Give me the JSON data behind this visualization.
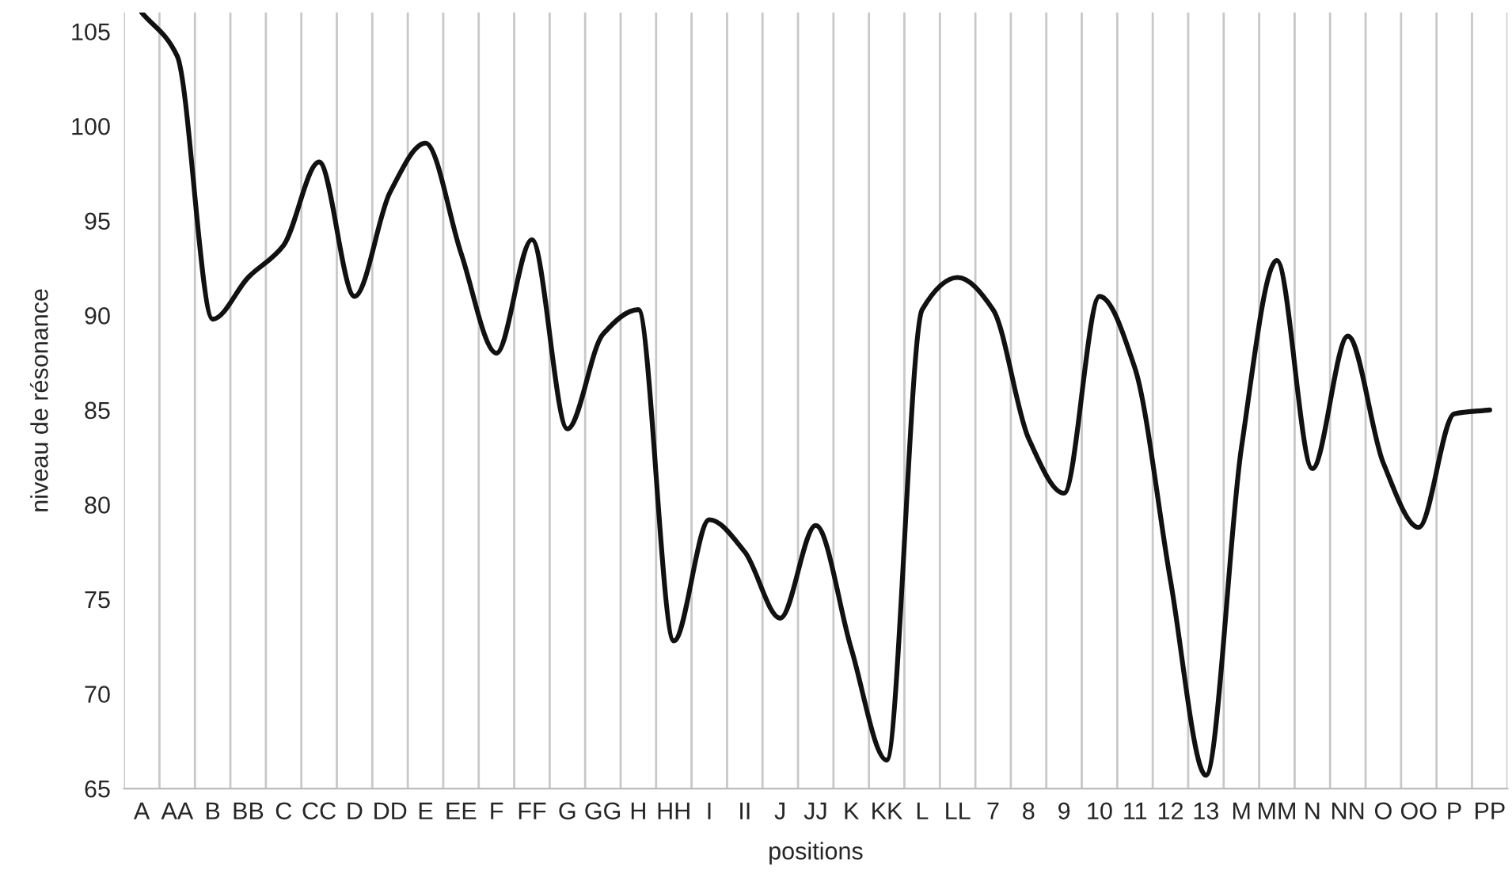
{
  "chart_data": {
    "type": "line",
    "xlabel": "positions",
    "ylabel": "niveau de résonance",
    "categories": [
      "A",
      "AA",
      "B",
      "BB",
      "C",
      "CC",
      "D",
      "DD",
      "E",
      "EE",
      "F",
      "FF",
      "G",
      "GG",
      "H",
      "HH",
      "I",
      "II",
      "J",
      "JJ",
      "K",
      "KK",
      "L",
      "LL",
      "7",
      "8",
      "9",
      "10",
      "11",
      "12",
      "13",
      "M",
      "MM",
      "N",
      "NN",
      "O",
      "OO",
      "P",
      "PP"
    ],
    "series": [
      {
        "color": "#111111",
        "values": [
          106,
          103.7,
          89.8,
          92,
          93.7,
          98.1,
          91,
          96.5,
          99.1,
          93.3,
          88,
          94,
          84,
          89,
          90.3,
          72.8,
          79.2,
          77.5,
          74,
          78.9,
          72.4,
          66.5,
          90.3,
          92,
          90.3,
          83.5,
          80.6,
          91,
          87.2,
          76,
          65.7,
          83,
          92.9,
          81.9,
          88.9,
          82.2,
          78.8,
          84.8,
          85
        ]
      }
    ],
    "ylim": [
      65,
      106
    ],
    "yticks": [
      65,
      70,
      75,
      80,
      85,
      90,
      95,
      100,
      105
    ],
    "grid": "x",
    "marker": "none",
    "line_style": "solid"
  }
}
